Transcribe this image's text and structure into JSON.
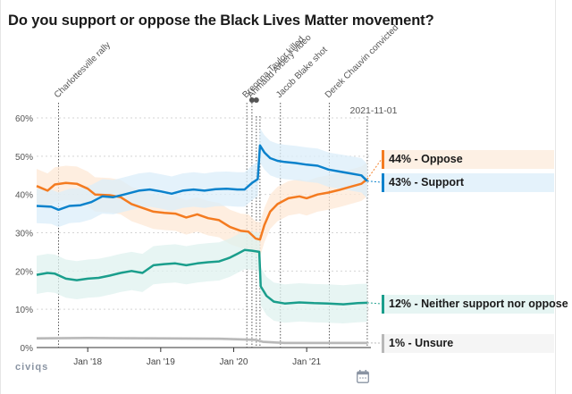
{
  "title": "Do you support or oppose the Black Lives Matter movement?",
  "brand": "civiqs",
  "calendar_icon": "calendar-icon",
  "chart_data": {
    "type": "line",
    "title": "Do you support or oppose the Black Lives Matter movement?",
    "xlabel": "",
    "ylabel": "",
    "ylim": [
      0,
      60
    ],
    "yticks": [
      0,
      10,
      20,
      30,
      40,
      50,
      60
    ],
    "ytick_labels": [
      "0%",
      "10%",
      "20%",
      "30%",
      "40%",
      "50%",
      "60%"
    ],
    "xlim": [
      2017.3,
      2021.88
    ],
    "xticks": [
      2018,
      2019,
      2020,
      2021
    ],
    "xtick_labels": [
      "Jan '18",
      "Jan '19",
      "Jan '20",
      "Jan '21"
    ],
    "grid": true,
    "legend_position": "right",
    "current_date_label": "2021-11-01",
    "events": [
      {
        "label": "Charlottesville rally",
        "x": 2017.6,
        "dot": false
      },
      {
        "label": "Breonna Taylor killed",
        "x": 2020.18,
        "dot": false
      },
      {
        "label": "Ahmaud Arbery video",
        "x": 2020.25,
        "dot": true
      },
      {
        "label": "",
        "x": 2020.31,
        "dot": true
      },
      {
        "label": "",
        "x": 2020.36,
        "dot": false
      },
      {
        "label": "Jacob Blake shot",
        "x": 2020.64,
        "dot": false
      },
      {
        "label": "Derek Chauvin convicted",
        "x": 2021.31,
        "dot": false
      },
      {
        "label": "",
        "x": 2021.83,
        "dot": false
      }
    ],
    "series": [
      {
        "name": "Oppose",
        "legend": "44% - Oppose",
        "color": "#f47b20",
        "band_color": "#fde8d6",
        "legend_bg": "#fdf0e4",
        "band": 4.5,
        "points": [
          [
            2017.3,
            42.2
          ],
          [
            2017.45,
            41.0
          ],
          [
            2017.55,
            42.6
          ],
          [
            2017.7,
            43.0
          ],
          [
            2017.85,
            42.8
          ],
          [
            2018.0,
            41.5
          ],
          [
            2018.1,
            40.0
          ],
          [
            2018.3,
            39.8
          ],
          [
            2018.45,
            39.3
          ],
          [
            2018.6,
            37.5
          ],
          [
            2018.75,
            36.5
          ],
          [
            2018.9,
            35.5
          ],
          [
            2019.05,
            35.2
          ],
          [
            2019.2,
            35.0
          ],
          [
            2019.35,
            34.0
          ],
          [
            2019.5,
            34.8
          ],
          [
            2019.65,
            33.8
          ],
          [
            2019.8,
            33.3
          ],
          [
            2019.95,
            31.5
          ],
          [
            2020.1,
            30.5
          ],
          [
            2020.2,
            30.3
          ],
          [
            2020.3,
            28.5
          ],
          [
            2020.36,
            28.2
          ],
          [
            2020.42,
            32.0
          ],
          [
            2020.5,
            35.5
          ],
          [
            2020.6,
            37.5
          ],
          [
            2020.75,
            39.0
          ],
          [
            2020.9,
            39.5
          ],
          [
            2021.0,
            39.0
          ],
          [
            2021.15,
            40.0
          ],
          [
            2021.3,
            40.5
          ],
          [
            2021.45,
            41.2
          ],
          [
            2021.6,
            42.0
          ],
          [
            2021.75,
            42.8
          ],
          [
            2021.83,
            44.0
          ]
        ]
      },
      {
        "name": "Support",
        "legend": "43% - Support",
        "color": "#0b82cc",
        "band_color": "#dbeef9",
        "legend_bg": "#e4f2fb",
        "band": 4.5,
        "points": [
          [
            2017.3,
            37.0
          ],
          [
            2017.5,
            36.8
          ],
          [
            2017.6,
            36.0
          ],
          [
            2017.75,
            37.0
          ],
          [
            2017.9,
            37.2
          ],
          [
            2018.05,
            38.0
          ],
          [
            2018.2,
            39.5
          ],
          [
            2018.35,
            39.3
          ],
          [
            2018.5,
            40.0
          ],
          [
            2018.7,
            41.0
          ],
          [
            2018.85,
            41.3
          ],
          [
            2019.0,
            40.8
          ],
          [
            2019.15,
            40.2
          ],
          [
            2019.3,
            41.0
          ],
          [
            2019.45,
            41.3
          ],
          [
            2019.6,
            41.0
          ],
          [
            2019.75,
            41.4
          ],
          [
            2019.9,
            41.5
          ],
          [
            2020.05,
            41.3
          ],
          [
            2020.15,
            41.3
          ],
          [
            2020.25,
            43.0
          ],
          [
            2020.33,
            44.0
          ],
          [
            2020.36,
            52.8
          ],
          [
            2020.42,
            51.0
          ],
          [
            2020.5,
            49.5
          ],
          [
            2020.6,
            48.8
          ],
          [
            2020.7,
            48.5
          ],
          [
            2020.85,
            48.2
          ],
          [
            2021.0,
            47.8
          ],
          [
            2021.15,
            47.5
          ],
          [
            2021.3,
            46.5
          ],
          [
            2021.45,
            46.0
          ],
          [
            2021.6,
            45.5
          ],
          [
            2021.75,
            45.0
          ],
          [
            2021.83,
            43.5
          ]
        ]
      },
      {
        "name": "Neither support nor oppose",
        "legend": "12% - Neither support nor oppose",
        "color": "#1a9e8c",
        "band_color": "#dff1ef",
        "legend_bg": "#e6f5f3",
        "band": 5,
        "points": [
          [
            2017.3,
            19.0
          ],
          [
            2017.45,
            19.5
          ],
          [
            2017.55,
            19.3
          ],
          [
            2017.7,
            18.0
          ],
          [
            2017.85,
            17.6
          ],
          [
            2018.0,
            18.0
          ],
          [
            2018.15,
            18.2
          ],
          [
            2018.3,
            18.8
          ],
          [
            2018.45,
            19.5
          ],
          [
            2018.6,
            20.0
          ],
          [
            2018.75,
            19.5
          ],
          [
            2018.9,
            21.5
          ],
          [
            2019.05,
            21.8
          ],
          [
            2019.2,
            22.0
          ],
          [
            2019.35,
            21.5
          ],
          [
            2019.5,
            22.0
          ],
          [
            2019.65,
            22.3
          ],
          [
            2019.8,
            22.5
          ],
          [
            2019.95,
            23.5
          ],
          [
            2020.05,
            24.5
          ],
          [
            2020.15,
            25.5
          ],
          [
            2020.25,
            25.3
          ],
          [
            2020.35,
            25.0
          ],
          [
            2020.37,
            16.0
          ],
          [
            2020.45,
            13.5
          ],
          [
            2020.55,
            12.0
          ],
          [
            2020.7,
            11.5
          ],
          [
            2020.9,
            11.8
          ],
          [
            2021.1,
            11.6
          ],
          [
            2021.3,
            11.5
          ],
          [
            2021.5,
            11.3
          ],
          [
            2021.7,
            11.6
          ],
          [
            2021.83,
            11.7
          ]
        ]
      },
      {
        "name": "Unsure",
        "legend": "1% - Unsure",
        "color": "#b8b8b8",
        "band_color": "#ededed",
        "legend_bg": "#f5f5f5",
        "band": 0.4,
        "points": [
          [
            2017.3,
            2.4
          ],
          [
            2018.0,
            2.5
          ],
          [
            2019.0,
            2.4
          ],
          [
            2019.8,
            2.3
          ],
          [
            2020.3,
            2.0
          ],
          [
            2020.4,
            1.5
          ],
          [
            2020.7,
            1.2
          ],
          [
            2021.3,
            1.2
          ],
          [
            2021.83,
            1.2
          ]
        ]
      }
    ]
  }
}
